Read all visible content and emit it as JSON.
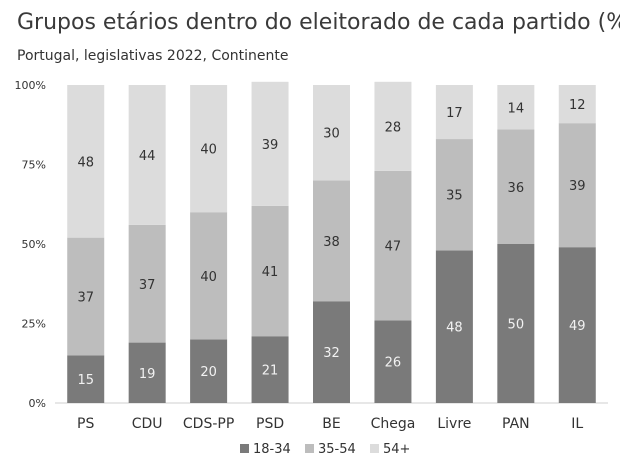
{
  "chart_data": {
    "type": "bar",
    "stacked": true,
    "title": "Grupos etários dentro do eleitorado de cada partido (%)",
    "subtitle": "Portugal, legislativas 2022, Continente",
    "categories": [
      "PS",
      "CDU",
      "CDS-PP",
      "PSD",
      "BE",
      "Chega",
      "Livre",
      "PAN",
      "IL"
    ],
    "series": [
      {
        "name": "18-34",
        "color": "#7a7a7a",
        "label_color": "#f2f2f2",
        "values": [
          15,
          19,
          20,
          21,
          32,
          26,
          48,
          50,
          49
        ]
      },
      {
        "name": "35-54",
        "color": "#bdbdbd",
        "label_color": "#333333",
        "values": [
          37,
          37,
          40,
          41,
          38,
          47,
          35,
          36,
          39
        ]
      },
      {
        "name": "54+",
        "color": "#dcdcdc",
        "label_color": "#333333",
        "values": [
          48,
          44,
          40,
          39,
          30,
          28,
          17,
          14,
          12
        ]
      }
    ],
    "yticks": [
      "0%",
      "25%",
      "50%",
      "75%",
      "100%"
    ],
    "ylim": [
      0,
      100
    ],
    "legend": "bottom-center",
    "xlabel": "",
    "ylabel": ""
  }
}
